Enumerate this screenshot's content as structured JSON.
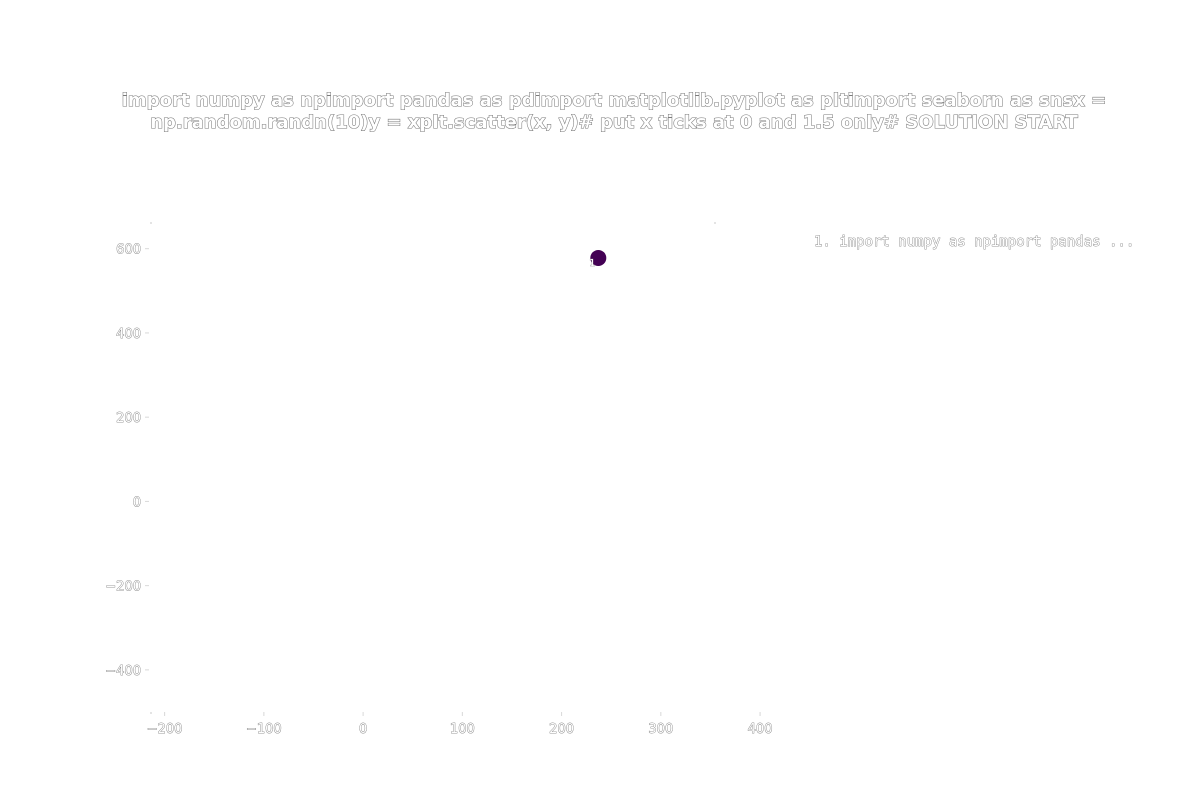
{
  "chart_data": {
    "type": "scatter",
    "title_lines": [
      "import numpy as npimport pandas as pdimport matplotlib.pyplot as pltimport seaborn as snsx =",
      "np.random.randn(10)y = xplt.scatter(x, y)# put x ticks at 0 and 1.5 only# SOLUTION START"
    ],
    "xlabel": "",
    "ylabel": "",
    "xlim": [
      -250,
      410
    ],
    "ylim": [
      -500,
      680
    ],
    "xticks": [
      -200,
      -100,
      0,
      100,
      200,
      300,
      400
    ],
    "xtick_labels": [
      "−200",
      "−100",
      "0",
      "100",
      "200",
      "300",
      "400"
    ],
    "yticks": [
      600,
      400,
      200,
      0,
      -200,
      -400
    ],
    "ytick_labels": [
      "600",
      "400",
      "200",
      "0",
      "−200",
      "−400"
    ],
    "grid": false,
    "legend_position": "top-right",
    "series": [
      {
        "name": "1. import numpy as npimport pandas ...",
        "color": "#440154",
        "points": [
          {
            "x": 237,
            "y": 578,
            "label": "1"
          }
        ]
      }
    ]
  }
}
